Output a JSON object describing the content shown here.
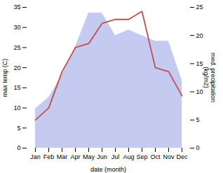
{
  "chart_data": {
    "type": "line",
    "categories": [
      "Jan",
      "Feb",
      "Mar",
      "Apr",
      "May",
      "Jun",
      "Jul",
      "Aug",
      "Sep",
      "Oct",
      "Nov",
      "Dec"
    ],
    "xlabel": "date (month)",
    "ylabel": "max temp (C)",
    "y2label": "med. precipitation\n(kg/m2)",
    "series": [
      {
        "type": "area",
        "axis": "y2",
        "color": "#c5caf0",
        "values": [
          7,
          9,
          13,
          18,
          24,
          24,
          20,
          21,
          20,
          19,
          19,
          12
        ]
      },
      {
        "type": "line",
        "color": "#c0504d",
        "values": [
          7,
          10,
          19,
          25,
          26,
          31,
          32,
          32,
          34,
          20,
          19,
          13
        ]
      }
    ],
    "ylim": [
      0,
      35
    ],
    "yticks": [
      0,
      5,
      10,
      15,
      20,
      25,
      30,
      35
    ],
    "y2lim": [
      0,
      25
    ],
    "y2ticks": [
      0,
      5,
      10,
      15,
      20,
      25
    ],
    "grid": false
  }
}
